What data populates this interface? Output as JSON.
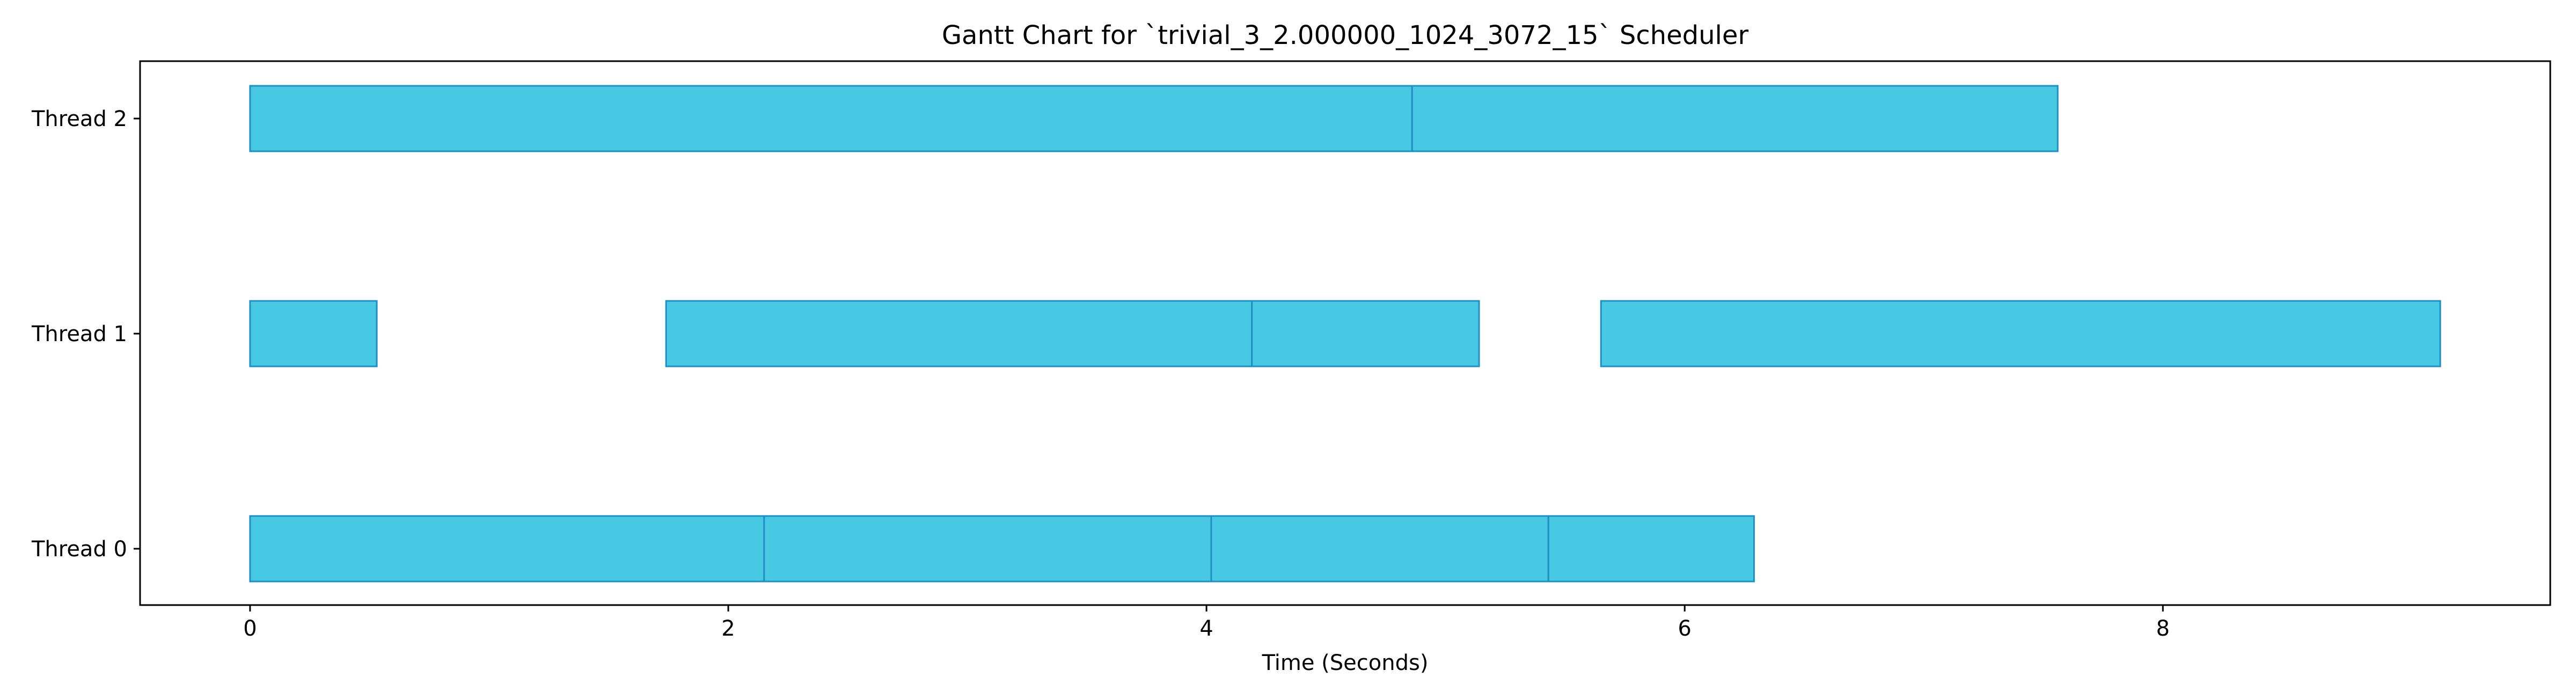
{
  "chart_data": {
    "type": "gantt",
    "title": "Gantt Chart for `trivial_3_2.000000_1024_3072_15` Scheduler",
    "xlabel": "Time (Seconds)",
    "ylabel": "",
    "xlim": [
      -0.46,
      9.62
    ],
    "xticks": [
      0,
      2,
      4,
      6,
      8
    ],
    "xtick_labels": [
      "0",
      "2",
      "4",
      "6",
      "8"
    ],
    "categories": [
      "Thread 0",
      "Thread 1",
      "Thread 2"
    ],
    "bar_color": "#48c9e3",
    "edge_color": "#1f8fc4",
    "grid": false,
    "tasks": [
      {
        "thread": "Thread 0",
        "start": 0.0,
        "end": 2.15
      },
      {
        "thread": "Thread 0",
        "start": 2.15,
        "end": 4.02
      },
      {
        "thread": "Thread 0",
        "start": 4.02,
        "end": 5.43
      },
      {
        "thread": "Thread 0",
        "start": 5.43,
        "end": 6.29
      },
      {
        "thread": "Thread 1",
        "start": 0.0,
        "end": 0.53
      },
      {
        "thread": "Thread 1",
        "start": 1.74,
        "end": 4.19
      },
      {
        "thread": "Thread 1",
        "start": 4.19,
        "end": 5.14
      },
      {
        "thread": "Thread 1",
        "start": 5.65,
        "end": 9.16
      },
      {
        "thread": "Thread 2",
        "start": 0.0,
        "end": 4.86
      },
      {
        "thread": "Thread 2",
        "start": 4.86,
        "end": 7.56
      }
    ]
  }
}
